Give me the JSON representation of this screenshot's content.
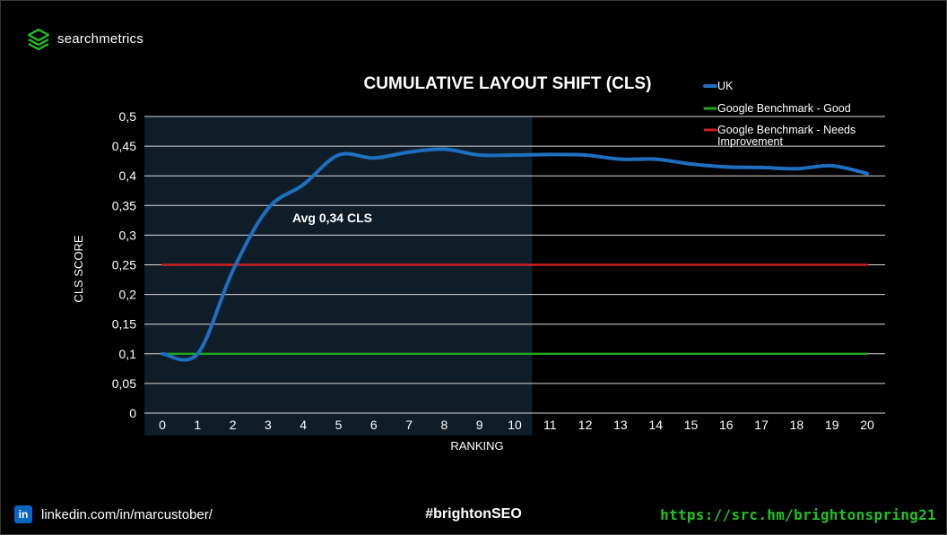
{
  "brand": {
    "name": "searchmetrics",
    "icon": "searchmetrics-logo-icon",
    "color": "#21c224"
  },
  "footer": {
    "linkedin_icon": "linkedin-icon",
    "linkedin_badge": "in",
    "linkedin_text": "linkedin.com/in/marcustober/",
    "hashtag": "#brightonSEO",
    "url": "https://src.hm/brightonspring21"
  },
  "chart_data": {
    "type": "line",
    "title": "CUMULATIVE LAYOUT SHIFT (CLS)",
    "xlabel": "RANKING",
    "ylabel": "CLS SCORE",
    "x": [
      0,
      1,
      2,
      3,
      4,
      5,
      6,
      7,
      8,
      9,
      10,
      11,
      12,
      13,
      14,
      15,
      16,
      17,
      18,
      19,
      20
    ],
    "ylim": [
      0,
      0.5
    ],
    "yticks": [
      0,
      0.05,
      0.1,
      0.15,
      0.2,
      0.25,
      0.3,
      0.35,
      0.4,
      0.45,
      0.5
    ],
    "ytick_labels": [
      "0",
      "0,05",
      "0,1",
      "0,15",
      "0,2",
      "0,25",
      "0,3",
      "0,35",
      "0,4",
      "0,45",
      "0,5"
    ],
    "grid": true,
    "legend_position": "top-right",
    "highlight_region": {
      "from_rank": 0,
      "to_rank": 10,
      "color": "#0e1d28"
    },
    "annotation": "Avg 0,34 CLS",
    "series": [
      {
        "name": "UK",
        "color": "#1f6fc1",
        "values": [
          0.1,
          0.1,
          0.24,
          0.345,
          0.385,
          0.435,
          0.43,
          0.44,
          0.445,
          0.435,
          0.435,
          0.436,
          0.435,
          0.428,
          0.428,
          0.42,
          0.415,
          0.414,
          0.412,
          0.417,
          0.404
        ]
      },
      {
        "name": "Google Benchmark - Good",
        "color": "#1fa81f",
        "values": [
          0.1,
          0.1,
          0.1,
          0.1,
          0.1,
          0.1,
          0.1,
          0.1,
          0.1,
          0.1,
          0.1,
          0.1,
          0.1,
          0.1,
          0.1,
          0.1,
          0.1,
          0.1,
          0.1,
          0.1,
          0.1
        ]
      },
      {
        "name": "Google Benchmark - Needs Improvement",
        "color": "#d01f1f",
        "values": [
          0.25,
          0.25,
          0.25,
          0.25,
          0.25,
          0.25,
          0.25,
          0.25,
          0.25,
          0.25,
          0.25,
          0.25,
          0.25,
          0.25,
          0.25,
          0.25,
          0.25,
          0.25,
          0.25,
          0.25,
          0.25
        ]
      }
    ]
  }
}
